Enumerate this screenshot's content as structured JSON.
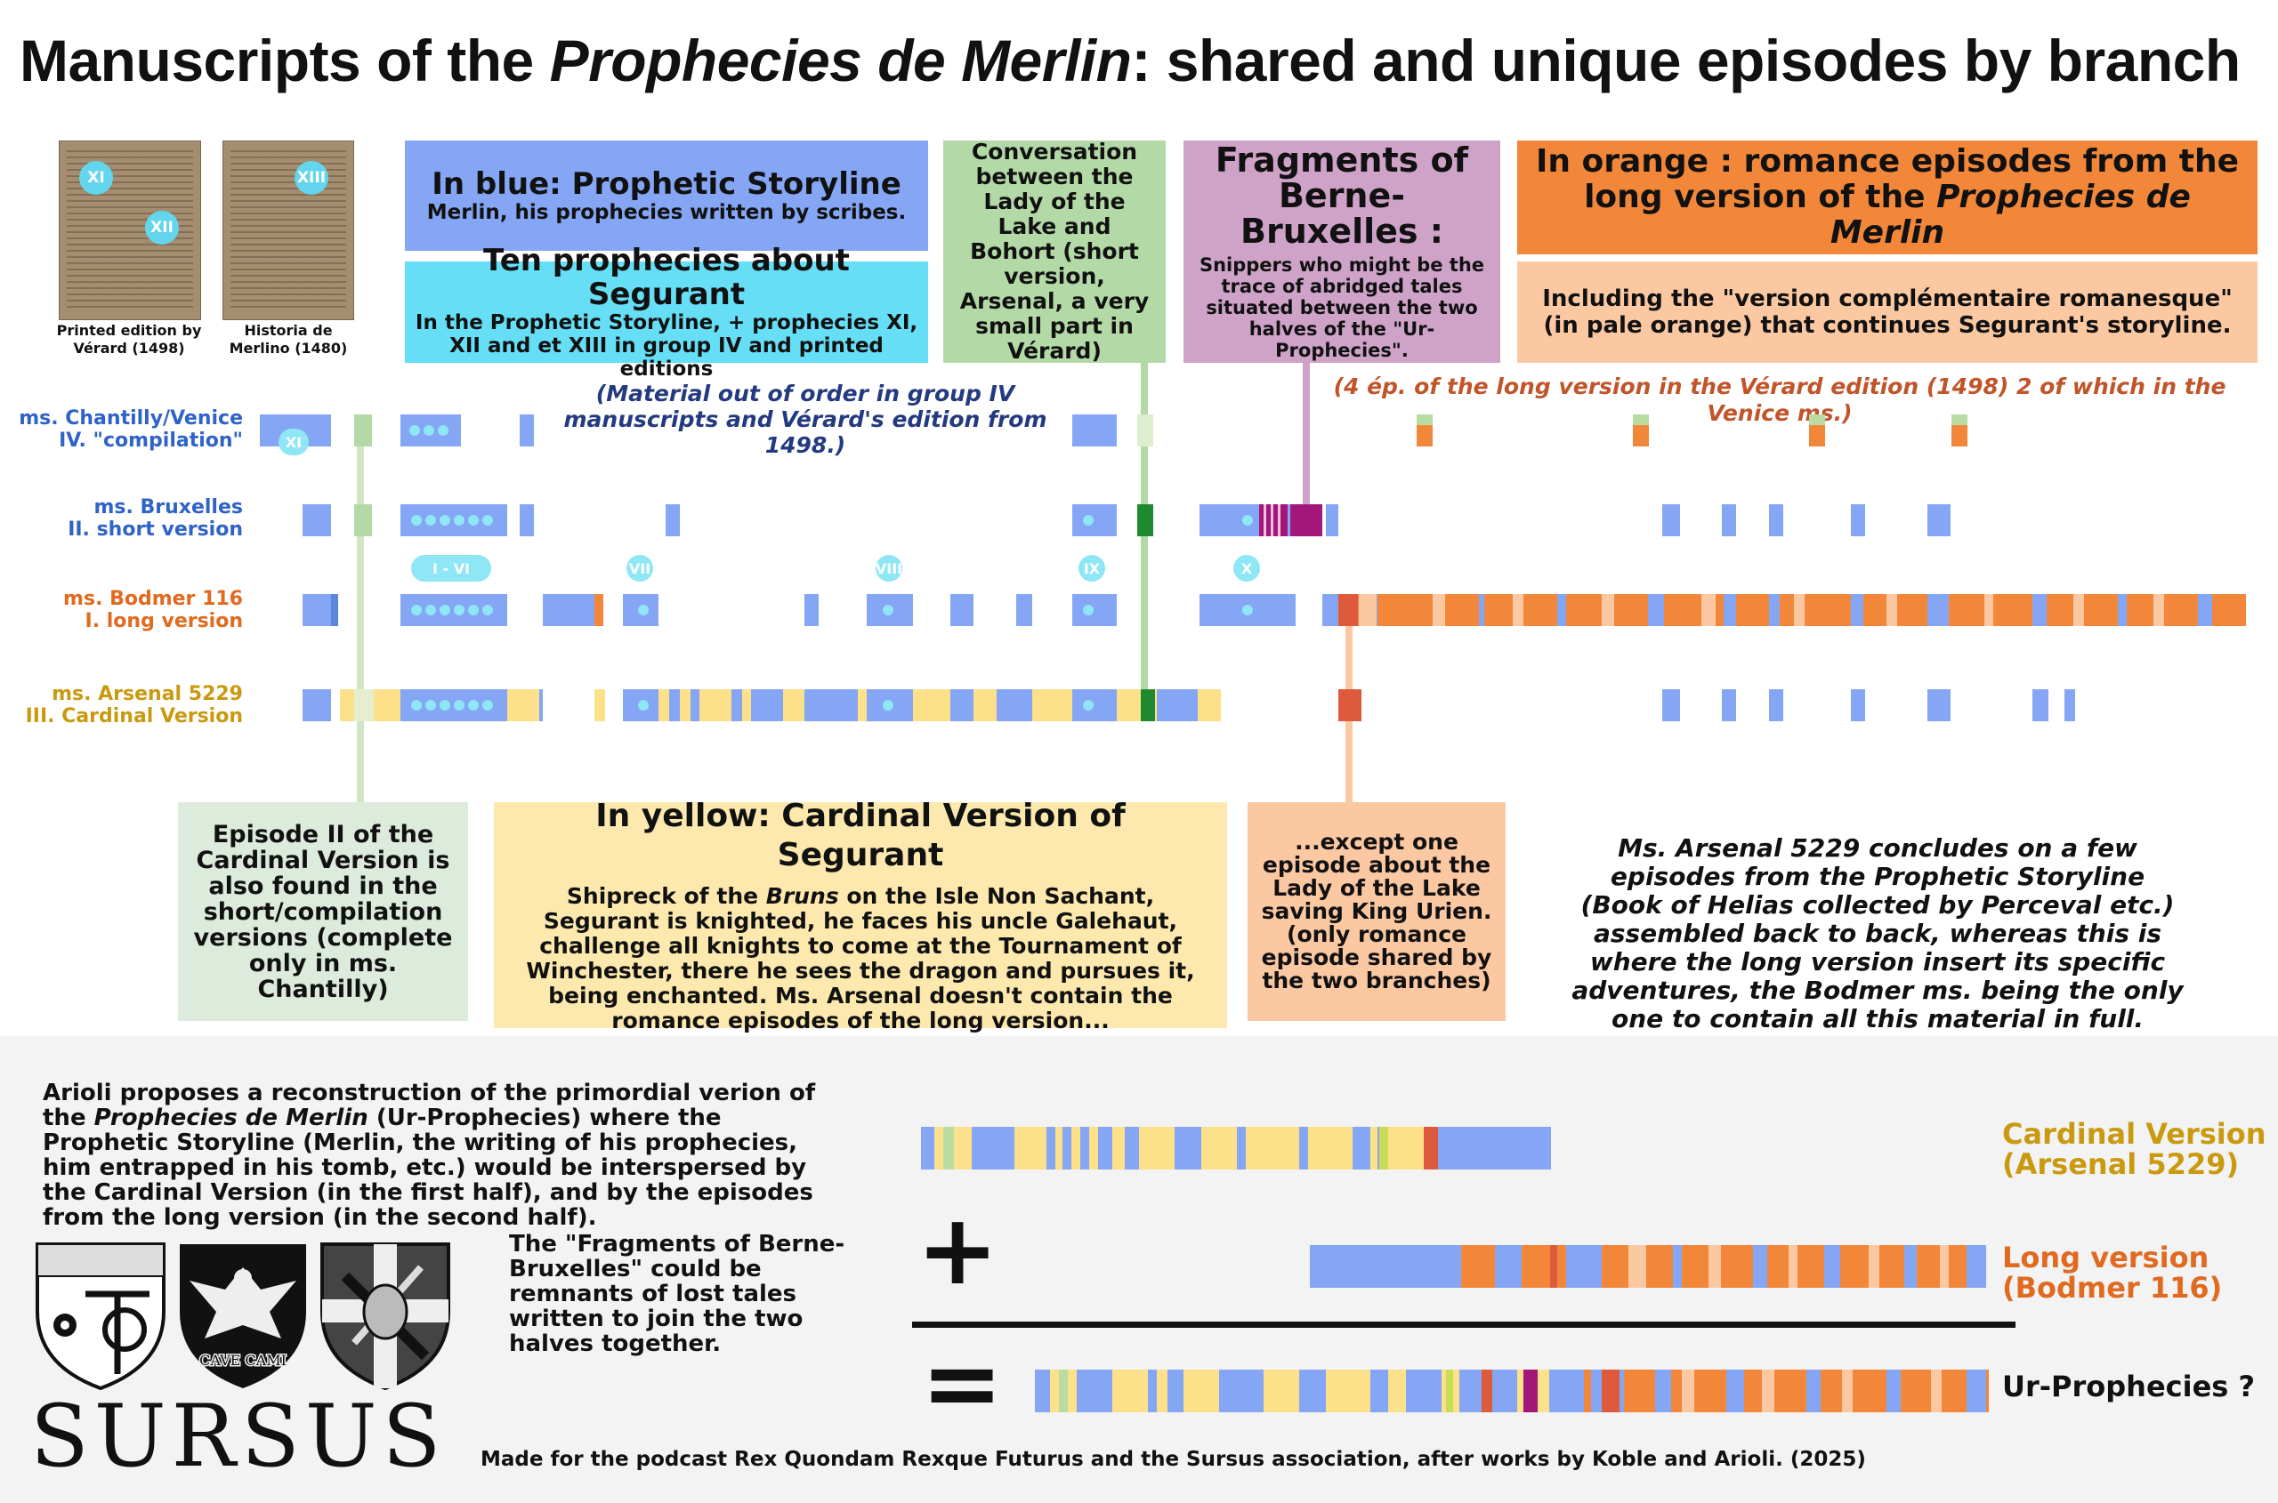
{
  "title": {
    "prefix": "Manuscripts of the ",
    "italic": "Prophecies de Merlin",
    "suffix": ": shared and unique episodes by branch"
  },
  "thumbnails": [
    {
      "caption": "Printed edition by Vérard (1498)",
      "badges": [
        "XI",
        "XII"
      ]
    },
    {
      "caption": "Historia de Merlino (1480)",
      "badges": [
        "XIII"
      ]
    }
  ],
  "legend": {
    "blue": {
      "heading": "In blue: Prophetic Storyline",
      "body": "Merlin, his prophecies written by scribes."
    },
    "cyan": {
      "heading": "Ten prophecies about Segurant",
      "body": "In the Prophetic Storyline, + prophecies XI, XII and et XIII in group IV and printed editions"
    },
    "green": {
      "body": "Conversation between the Lady of the Lake and Bohort (short version, Arsenal, a very small part in Vérard)"
    },
    "purple": {
      "heading": "Fragments of Berne-Bruxelles :",
      "body": "Snippers who might be the trace of abridged tales situated between the two halves of the \"Ur-Prophecies\"."
    },
    "orange": {
      "heading_prefix": "In orange : romance episodes from the long version of the ",
      "heading_italic": "Prophecies de Merlin"
    },
    "paleorange": {
      "body": "Including the \"version complémentaire romanesque\" (in pale orange) that continues Segurant's storyline."
    }
  },
  "notes": {
    "group4": "(Material out of order in group IV manuscripts and Vérard's edition from 1498.)",
    "verard": "(4 ép. of the long version in the Vérard edition (1498) 2 of which in the Venice ms.)",
    "arsenal_end": "Ms. Arsenal 5229 concludes on a few episodes from the Prophetic Storyline (Book of Helias collected by Perceval etc.) assembled back to back, whereas this is where the long version insert its specific adventures, the Bodmer ms. being the only one to contain all this material in full."
  },
  "rows": [
    {
      "line1": "ms. Chantilly/Venice",
      "line2": "IV. \"compilation\"",
      "color": "#2f63c8"
    },
    {
      "line1": "ms. Bruxelles",
      "line2": "II. short version",
      "color": "#2f63c8"
    },
    {
      "line1": "ms. Bodmer 116",
      "line2": "I. long version",
      "color": "#e06a1f"
    },
    {
      "line1": "ms. Arsenal 5229",
      "line2": "III. Cardinal Version",
      "color": "#c99a10"
    }
  ],
  "prophecy_markers": [
    "XI",
    "I - VI",
    "VII",
    "VIII",
    "IX",
    "X"
  ],
  "callouts": {
    "episode2": "Episode II of the Cardinal Version is also found in the short/compilation versions (complete only in ms. Chantilly)",
    "yellow_heading": "In yellow: Cardinal Version of Segurant",
    "yellow_body_1": "Shipreck of the ",
    "yellow_body_italic": "Bruns",
    "yellow_body_2": " on the Isle Non Sachant, Segurant is knighted, he faces his uncle Galehaut, challenge all knights to come at the Tournament of Winchester, there he sees the dragon and pursues it, being enchanted. Ms. Arsenal doesn't contain the romance episodes of the long version...",
    "except": "...except one episode about the Lady of the Lake saving King Urien. (only romance episode shared by the two branches)"
  },
  "bottom": {
    "arioli_1": "Arioli proposes a reconstruction of the primordial verion of the ",
    "arioli_italic": "Prophecies de Merlin",
    "arioli_2": " (Ur-Prophecies) where the Prophetic Storyline (Merlin, the writing of his prophecies, him entrapped in his tomb, etc.) would be interspersed by the Cardinal Version (in the first half), and by the episodes from the long version (in the second half).",
    "fragments": "The \"Fragments of Berne-Bruxelles\" could be remnants of lost tales written to join the two halves together.",
    "plus": "+",
    "equals": "=",
    "label_cardinal_1": "Cardinal Version",
    "label_cardinal_2": "(Arsenal 5229)",
    "label_long_1": "Long version",
    "label_long_2": "(Bodmer 116)",
    "label_ur": "Ur-Prophecies ?",
    "logo": "SURSUS",
    "shield_text": "CAVE CAMI",
    "credit": "Made for the podcast Rex Quondam Rexque Futurus and the Sursus association, after works by Koble and Arioli. (2025)"
  },
  "colors": {
    "blue": "#84a6f4",
    "cyan": "#66dff6",
    "green": "#b3d9a6",
    "darkgreen": "#1f8a2d",
    "purple": "#cfa3c8",
    "magenta": "#a3177a",
    "orange": "#f2873a",
    "paleorange": "#fbc8a2",
    "red": "#dd5a3c",
    "yellow": "#fde08a"
  }
}
